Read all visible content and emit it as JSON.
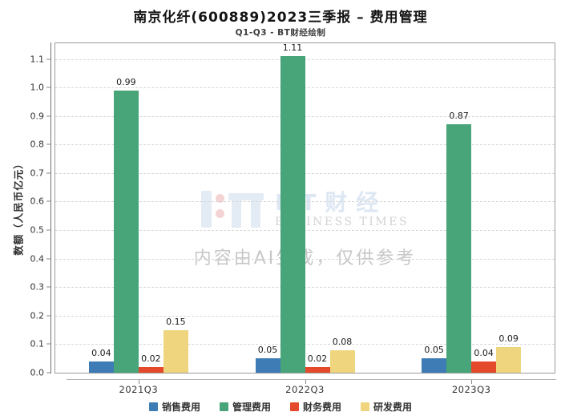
{
  "header": {
    "title": "南京化纤(600889)2023三季报 – 费用管理",
    "subtitle": "Q1-Q3 - BT财经绘制"
  },
  "watermark": {
    "logo_text": "BT财经",
    "logo_subtext": "BUSINESS TIMES",
    "disclaimer": "内容由AI生成，仅供参考"
  },
  "chart_data": {
    "type": "bar",
    "title": "南京化纤(600889)2023三季报 – 费用管理",
    "subtitle": "Q1-Q3 - BT财经绘制",
    "categories": [
      "2021Q3",
      "2022Q3",
      "2023Q3"
    ],
    "series": [
      {
        "name": "销售费用",
        "color": "#3d7cb4",
        "values": [
          0.04,
          0.05,
          0.05
        ]
      },
      {
        "name": "管理费用",
        "color": "#47a579",
        "values": [
          0.99,
          1.11,
          0.87
        ]
      },
      {
        "name": "财务费用",
        "color": "#e5492b",
        "values": [
          0.02,
          0.02,
          0.04
        ]
      },
      {
        "name": "研发费用",
        "color": "#eed57e",
        "values": [
          0.15,
          0.08,
          0.09
        ]
      }
    ],
    "xlabel": "",
    "ylabel": "数额（人民币亿元）",
    "ylim": [
      0,
      1.155
    ],
    "ytick_step": 0.1,
    "yticks": [
      "0.0",
      "0.1",
      "0.2",
      "0.3",
      "0.4",
      "0.5",
      "0.6",
      "0.7",
      "0.8",
      "0.9",
      "1.0",
      "1.1"
    ],
    "grid": "horizontal-dashed",
    "legend_position": "bottom",
    "bar_value_labels": true
  }
}
